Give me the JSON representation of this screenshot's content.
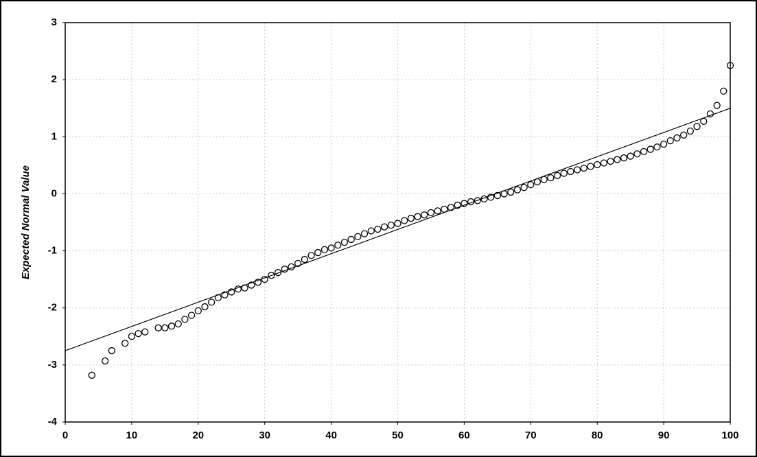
{
  "chart_data": {
    "type": "scatter",
    "y_label": "Expected Normal Value",
    "xlim": [
      0,
      100
    ],
    "ylim": [
      -4,
      3
    ],
    "xticks": [
      0,
      10,
      20,
      30,
      40,
      50,
      60,
      70,
      80,
      90,
      100
    ],
    "yticks": [
      -4,
      -3,
      -2,
      -1,
      0,
      1,
      2,
      3
    ],
    "grid": true,
    "series": [
      {
        "color": "#000000",
        "x": [
          4,
          6,
          7,
          9,
          10,
          11,
          12,
          14,
          15,
          16,
          17,
          18,
          19,
          20,
          21,
          22,
          23,
          24,
          25,
          26,
          27,
          28,
          29,
          30,
          31,
          32,
          33,
          34,
          35,
          36,
          37,
          38,
          39,
          40,
          41,
          42,
          43,
          44,
          45,
          46,
          47,
          48,
          49,
          50,
          51,
          52,
          53,
          54,
          55,
          56,
          57,
          58,
          59,
          60,
          61,
          62,
          63,
          64,
          65,
          66,
          67,
          68,
          69,
          70,
          71,
          72,
          73,
          74,
          75,
          76,
          77,
          78,
          79,
          80,
          81,
          82,
          83,
          84,
          85,
          86,
          87,
          88,
          89,
          90,
          91,
          92,
          93,
          94,
          95,
          96,
          97,
          98,
          99,
          100
        ],
        "values": [
          -3.18,
          -2.93,
          -2.75,
          -2.62,
          -2.5,
          -2.45,
          -2.42,
          -2.35,
          -2.35,
          -2.32,
          -2.28,
          -2.2,
          -2.13,
          -2.05,
          -1.98,
          -1.9,
          -1.82,
          -1.77,
          -1.72,
          -1.67,
          -1.65,
          -1.6,
          -1.55,
          -1.5,
          -1.43,
          -1.38,
          -1.32,
          -1.28,
          -1.22,
          -1.15,
          -1.08,
          -1.03,
          -0.98,
          -0.95,
          -0.9,
          -0.85,
          -0.8,
          -0.75,
          -0.7,
          -0.65,
          -0.62,
          -0.58,
          -0.55,
          -0.52,
          -0.47,
          -0.43,
          -0.4,
          -0.37,
          -0.33,
          -0.3,
          -0.27,
          -0.24,
          -0.2,
          -0.17,
          -0.14,
          -0.12,
          -0.09,
          -0.06,
          -0.03,
          0.0,
          0.03,
          0.07,
          0.11,
          0.16,
          0.21,
          0.25,
          0.28,
          0.32,
          0.36,
          0.39,
          0.42,
          0.45,
          0.48,
          0.51,
          0.54,
          0.57,
          0.6,
          0.63,
          0.66,
          0.7,
          0.74,
          0.78,
          0.82,
          0.87,
          0.93,
          0.98,
          1.03,
          1.1,
          1.18,
          1.27,
          1.4,
          1.55,
          1.8,
          2.25
        ]
      }
    ],
    "fit_line": {
      "color": "#000000",
      "x": [
        0,
        100
      ],
      "values": [
        -2.75,
        1.5
      ]
    }
  }
}
